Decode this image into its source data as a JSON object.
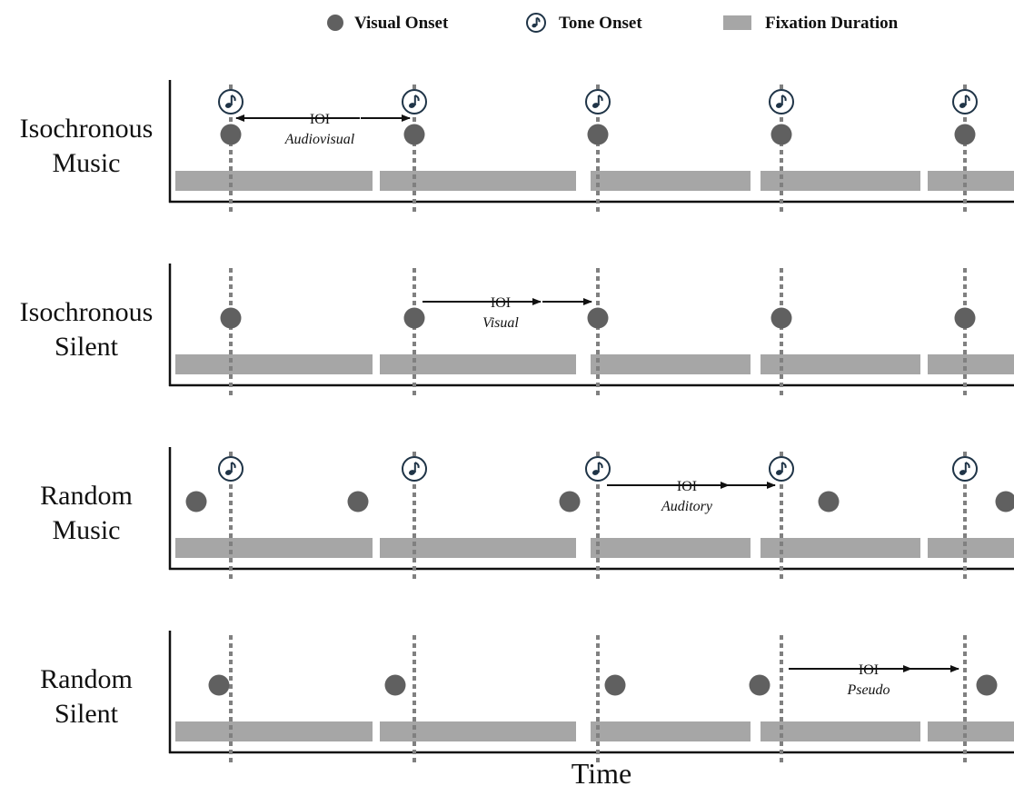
{
  "colors": {
    "onset": "#606060",
    "fixation": "#a6a6a6",
    "dashed": "#808080",
    "tone": "#1f3447",
    "axis": "#111111"
  },
  "legend": [
    {
      "icon": "filled-circle-icon",
      "label": "Visual Onset"
    },
    {
      "icon": "music-note-icon",
      "label": "Tone Onset"
    },
    {
      "icon": "gray-bar-icon",
      "label": "Fixation Duration"
    }
  ],
  "x_axis_label": "Time",
  "rows": [
    {
      "line1": "Isochronous",
      "line2": "Music",
      "tones": true,
      "ioi": {
        "label": "IOI",
        "type": "Audiovisual"
      }
    },
    {
      "line1": "Isochronous",
      "line2": "Silent",
      "tones": false,
      "ioi": {
        "label": "IOI",
        "type": "Visual"
      }
    },
    {
      "line1": "Random",
      "line2": "Music",
      "tones": true,
      "ioi": {
        "label": "IOI",
        "type": "Auditory"
      }
    },
    {
      "line1": "Random",
      "line2": "Silent",
      "tones": false,
      "ioi": {
        "label": "IOI",
        "type": "Pseudo"
      }
    }
  ]
}
